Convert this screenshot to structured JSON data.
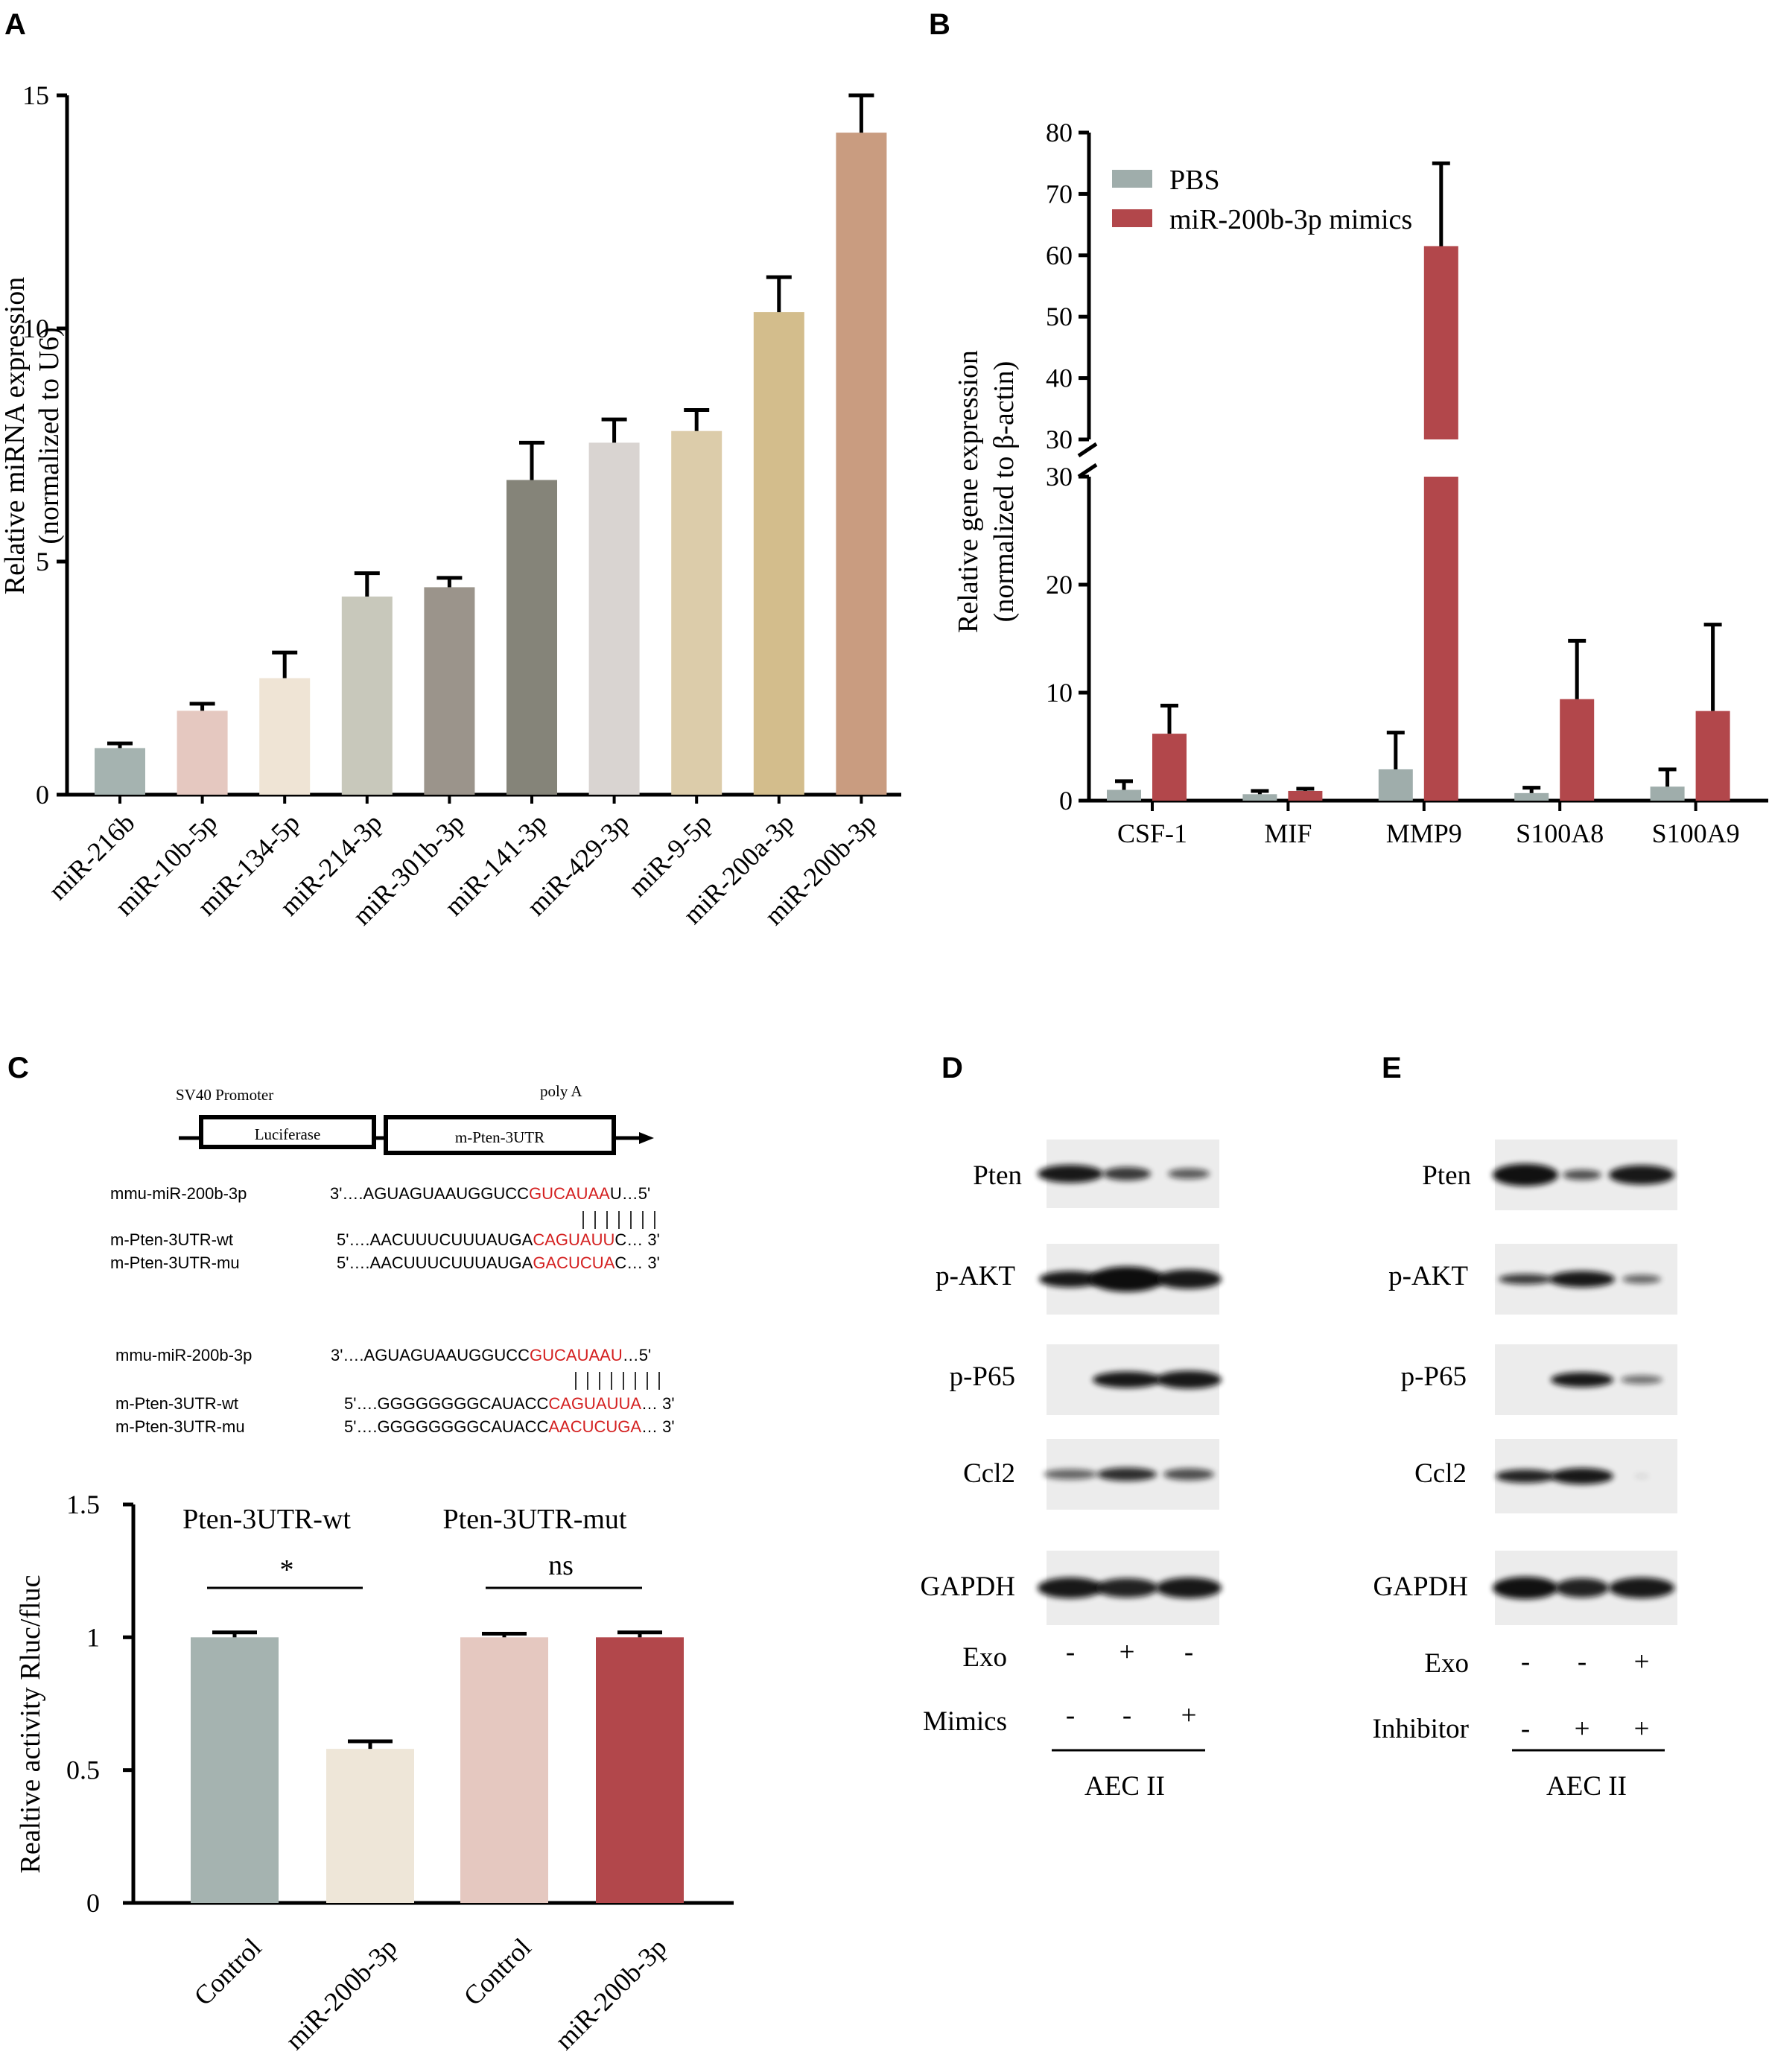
{
  "panels": {
    "A": "A",
    "B": "B",
    "C": "C",
    "D": "D",
    "E": "E"
  },
  "chart_data": [
    {
      "type": "bar",
      "panel": "A",
      "categories": [
        "miR-216b",
        "miR-10b-5p",
        "miR-134-5p",
        "miR-214-3p",
        "miR-301b-3p",
        "miR-141-3p",
        "miR-429-3p",
        "miR-9-5p",
        "miR-200a-3p",
        "miR-200b-3p"
      ],
      "values": [
        1.0,
        1.8,
        2.5,
        4.25,
        4.45,
        6.75,
        7.55,
        7.8,
        10.35,
        14.2
      ],
      "errors": [
        0.1,
        0.15,
        0.55,
        0.5,
        0.2,
        0.8,
        0.5,
        0.45,
        0.75,
        0.8
      ],
      "colors": [
        "#a5b3b0",
        "#e5c8c0",
        "#efe4d5",
        "#c8c8bb",
        "#9b948b",
        "#858479",
        "#d9d4d1",
        "#dcccaa",
        "#d3bd8c",
        "#c99c80"
      ],
      "ylabel": "Relative miRNA expression",
      "ylabel2": "(normalized to U6)",
      "yticks": [
        "0",
        "5",
        "10",
        "15"
      ],
      "ylim": [
        0,
        15
      ]
    },
    {
      "type": "bar",
      "panel": "B",
      "categories": [
        "CSF-1",
        "MIF",
        "MMP9",
        "S100A8",
        "S100A9"
      ],
      "series": [
        {
          "name": "PBS",
          "color": "#9fadab",
          "values": [
            1.0,
            0.6,
            2.9,
            0.7,
            1.3
          ],
          "errors": [
            0.8,
            0.3,
            3.4,
            0.5,
            1.6
          ]
        },
        {
          "name": "miR-200b-3p mimics",
          "color": "#b2474b",
          "values": [
            6.2,
            0.9,
            61.5,
            9.4,
            8.3
          ],
          "errors": [
            2.6,
            0.2,
            13.5,
            5.4,
            8.0
          ]
        }
      ],
      "ylabel": "Relative gene expression",
      "ylabel2": "(normalized to β-actin)",
      "yticks_lower": [
        "0",
        "10",
        "20",
        "30"
      ],
      "yticks_upper": [
        "30",
        "40",
        "50",
        "60",
        "70",
        "80"
      ],
      "axis_break": [
        30,
        30
      ],
      "ylim": [
        0,
        80
      ]
    },
    {
      "type": "bar",
      "panel": "C",
      "categories": [
        "Control",
        "miR-200b-3p",
        "Control",
        "miR-200b-3p"
      ],
      "values": [
        1.0,
        0.58,
        1.0,
        1.0
      ],
      "errors": [
        0.01,
        0.02,
        0.005,
        0.01
      ],
      "colors": [
        "#a5b3b0",
        "#eee6d8",
        "#e5c8c0",
        "#b2474b"
      ],
      "groups": [
        "Pten-3UTR-wt",
        "Pten-3UTR-mut"
      ],
      "significance": [
        "*",
        "ns"
      ],
      "ylabel": "Realtive activity Rluc/fluc",
      "yticks": [
        "0",
        "0.5",
        "1",
        "1.5"
      ],
      "ylim": [
        0,
        1.5
      ]
    }
  ],
  "construct": {
    "promoter": "SV40 Promoter",
    "polya": "poly A",
    "box1": "Luciferase",
    "box2": "m-Pten-3UTR"
  },
  "seq_rows": [
    {
      "name": "mmu-miR-200b-3p",
      "prefix": "3'….AGUAGUAAUGGUCC",
      "red": "GUCAUAA",
      "suffix": "U…5'"
    },
    {
      "name": "m-Pten-3UTR-wt",
      "prefix": "5'….AACUUUCUUUAUGA",
      "red": "CAGUAUU",
      "suffix": "C… 3'"
    },
    {
      "name": "m-Pten-3UTR-mu",
      "prefix": "5'….AACUUUCUUUAUGA",
      "red": "GACUCUA",
      "suffix": "C… 3'"
    },
    {
      "name": "mmu-miR-200b-3p",
      "prefix": "3'….AGUAGUAAUGGUCC",
      "red": "GUCAUAAU",
      "suffix": "…5'"
    },
    {
      "name": "m-Pten-3UTR-wt",
      "prefix": "5'….GGGGGGGGCAUACC",
      "red": "CAGUAUUA",
      "suffix": "… 3'"
    },
    {
      "name": "m-Pten-3UTR-mu",
      "prefix": "5'….GGGGGGGGCAUACC",
      "red": "AACUCUGA",
      "suffix": "… 3'"
    }
  ],
  "western": {
    "D": {
      "proteins": [
        "Pten",
        "p-AKT",
        "p-P65",
        "Ccl2",
        "GAPDH"
      ],
      "rows": [
        {
          "label": "Exo",
          "signs": [
            "-",
            "+",
            "-"
          ]
        },
        {
          "label": "Mimics",
          "signs": [
            "-",
            "-",
            "+"
          ]
        }
      ],
      "cell": "AEC II"
    },
    "E": {
      "proteins": [
        "Pten",
        "p-AKT",
        "p-P65",
        "Ccl2",
        "GAPDH"
      ],
      "rows": [
        {
          "label": "Exo",
          "signs": [
            "-",
            "-",
            "+"
          ]
        },
        {
          "label": "Inhibitor",
          "signs": [
            "-",
            "+",
            "+"
          ]
        }
      ],
      "cell": "AEC II"
    }
  }
}
